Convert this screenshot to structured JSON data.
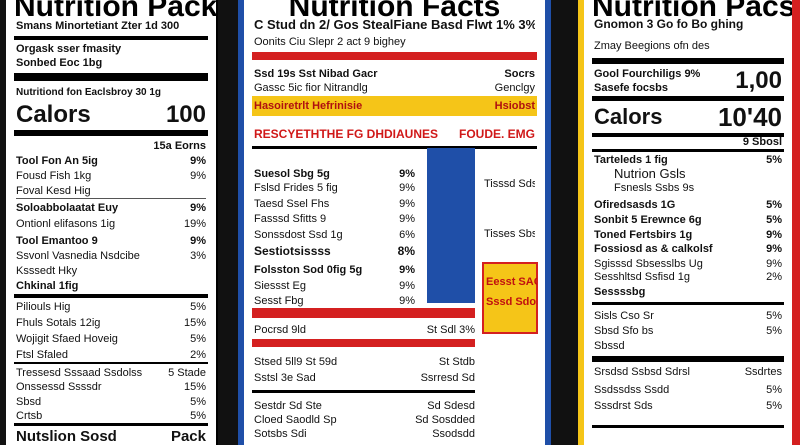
{
  "left": {
    "title": "Nutrition Pack",
    "rows": [
      [
        "Smans Minortetiant Zter 1d 300"
      ],
      [
        "Orgask sser fmasity"
      ],
      [
        "Sonbed Eoc 1bg"
      ],
      [
        "Nutritiond fon Eaclsbroy 30 1g"
      ],
      [
        "Calors",
        "100"
      ],
      [
        "15a Eorns"
      ],
      [
        "Tool Fon An 5ig",
        "9%"
      ],
      [
        "Fousd Fish 1kg",
        "9%"
      ],
      [
        "Foval Kesd Hig"
      ],
      [
        "Soloabbolaatat Euy",
        "9%"
      ],
      [
        "Ontionl elifasons 1ig",
        "19%"
      ],
      [
        "Tool Emantoo 9",
        "9%"
      ],
      [
        "Ssvonl Vasnedia Nsdcibe",
        "3%"
      ],
      [
        "Ksssedt Hky"
      ],
      [
        "Chkinal 1fig"
      ],
      [
        "Piliouls Hig",
        "5%"
      ],
      [
        "Fhuls Sotals 12ig",
        "15%"
      ],
      [
        "Wojigit Sfaed Hoveig",
        "5%"
      ],
      [
        "Ftsl Sfaled",
        "2%"
      ],
      [
        "Tressesd Sssaad Ssdolss",
        "5 Stade"
      ],
      [
        "Onssessd Ssssdr",
        "15%"
      ],
      [
        "Sbsd",
        "5%"
      ],
      [
        "Crtsb",
        "5%"
      ],
      [
        "Nutslion Sosd",
        "Pack"
      ]
    ]
  },
  "middle": {
    "title": "Nutrition Facts",
    "rows": [
      [
        "C Stud dn 2/ Gos Steal",
        "Fiane Basd Flwt 1% 3%"
      ],
      [
        "Oonits Ciu Slepr 2 act 9 bighey"
      ],
      [
        "Ssd 19s Sst Nibad Gacr",
        "Socrs"
      ],
      [
        "Gassc 5ic fior Nitrandlg",
        "Genclgy"
      ],
      [
        "Hasoiretrlt Hefrinisie",
        "Hsiobst"
      ],
      [
        "RESCYETHTHE FG DHDIAUNES",
        "FOUDE. EMG"
      ],
      [
        "Suesol Sbg 5g",
        "9%"
      ],
      [
        "Fslsd Frides 5 fig",
        "9%"
      ],
      [
        "Taesd Ssel Fhs",
        "9%"
      ],
      [
        "Fasssd Sfitts 9",
        "9%"
      ],
      [
        "Sonssdost Ssd 1g",
        "6%"
      ],
      [
        "Sestiotsissss",
        "8%"
      ],
      [
        "Folsston Sod 0fig 5g",
        "9%"
      ],
      [
        "Siessst Eg",
        "9%"
      ],
      [
        "Sesst Fbg",
        "9%"
      ],
      [
        "Pocrsd 9ld",
        "St Sdl 3%"
      ],
      [
        "Stsed 5ll9 St 59d",
        "St Stdb"
      ],
      [
        "Sstsl 3e Sad",
        "Ssrresd Sd"
      ],
      [
        "Sestdr Sd Ste",
        "Sd Sdesd"
      ],
      [
        "Cloed Saodld Sp",
        "Sd Sosdded"
      ],
      [
        "Sotsbs Sdi",
        "Ssodsdd"
      ]
    ],
    "side": [
      "Tisssd Sdsd",
      "Tisses Sbs"
    ],
    "badge": [
      "Eesst SACS",
      "Sssd Sdosd"
    ]
  },
  "right": {
    "title": "Nutrition Pacs",
    "rows": [
      [
        "Gnomon 3 Go fo Bo ghing"
      ],
      [
        "Zmay Beegions ofn des"
      ],
      [
        "Gool Fourchiligs 9%",
        "1,00"
      ],
      [
        "Sasefe focsbs"
      ],
      [
        "Calors",
        "10'40"
      ],
      [
        "9 Sbosl"
      ],
      [
        "Tarteleds 1 fig",
        "5%"
      ],
      [
        "Nutrion Gsls"
      ],
      [
        "Fsnesls Ssbs 9s"
      ],
      [
        "Ofiredsasds 1G",
        "5%"
      ],
      [
        "Sonbit 5 Erewnce 6g",
        "5%"
      ],
      [
        "Toned Fertsbirs 1g",
        "9%"
      ],
      [
        "Fossiosd as & calkolsf",
        "9%"
      ],
      [
        "Sgisssd Sbsesslbs Ug",
        "9%"
      ],
      [
        "Sesshltsd Ssfisd 1g",
        "2%"
      ],
      [
        "Sessssbg"
      ],
      [
        "Sisls Cso Sr",
        "5%"
      ],
      [
        "Sbsd Sfo bs",
        "5%"
      ],
      [
        "Sbssd"
      ],
      [
        "Srsdsd Ssbsd Sdrsl",
        "Ssdrtes"
      ],
      [
        "Ssdssdss Ssdd",
        "5%"
      ],
      [
        "Sssdrst Sds",
        "5%"
      ]
    ]
  }
}
